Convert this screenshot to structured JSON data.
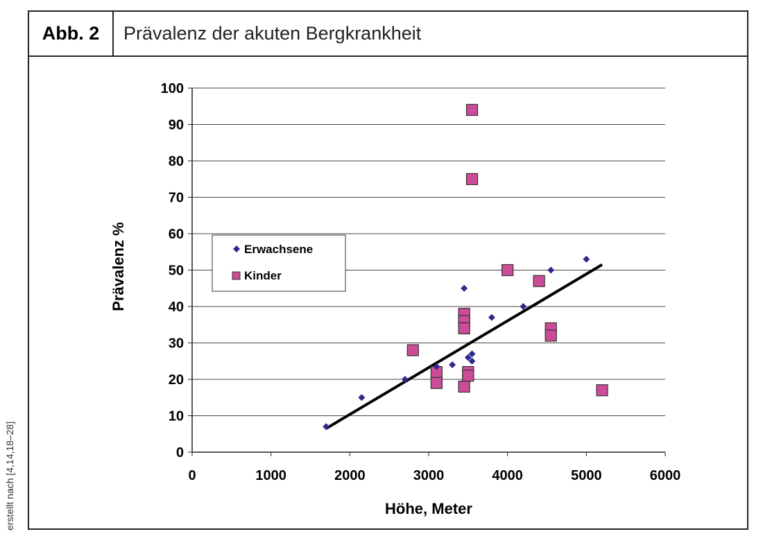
{
  "figure": {
    "label": "Abb. 2",
    "title": "Prävalenz der akuten Bergkrankheit",
    "source": "erstellt nach [4,14,18–28]"
  },
  "chart_data": {
    "type": "scatter",
    "title": "Prävalenz der akuten Bergkrankheit",
    "xlabel": "Höhe, Meter",
    "ylabel": "Prävalenz  %",
    "xlim": [
      0,
      6000
    ],
    "ylim": [
      0,
      100
    ],
    "xticks": [
      0,
      1000,
      2000,
      3000,
      4000,
      5000,
      6000
    ],
    "yticks": [
      0,
      10,
      20,
      30,
      40,
      50,
      60,
      70,
      80,
      90,
      100
    ],
    "grid": "horizontal",
    "legend_position": "center-left",
    "series": [
      {
        "name": "Erwachsene",
        "marker": "diamond",
        "color": "#2e2a8c",
        "points": [
          [
            1700,
            7
          ],
          [
            2150,
            15
          ],
          [
            2700,
            20
          ],
          [
            3100,
            23.5
          ],
          [
            3300,
            24
          ],
          [
            3450,
            45
          ],
          [
            3500,
            26
          ],
          [
            3550,
            27
          ],
          [
            3550,
            25
          ],
          [
            3800,
            37
          ],
          [
            4200,
            40
          ],
          [
            4550,
            50
          ],
          [
            5000,
            53
          ]
        ]
      },
      {
        "name": "Kinder",
        "marker": "square",
        "color": "#cc4c98",
        "points": [
          [
            3550,
            94
          ],
          [
            3550,
            75
          ],
          [
            2800,
            28
          ],
          [
            3100,
            22
          ],
          [
            3100,
            19
          ],
          [
            3450,
            38
          ],
          [
            3450,
            36
          ],
          [
            3450,
            34
          ],
          [
            3450,
            18
          ],
          [
            3500,
            22
          ],
          [
            3500,
            21
          ],
          [
            4000,
            50
          ],
          [
            4400,
            47
          ],
          [
            4550,
            34
          ],
          [
            4550,
            32
          ],
          [
            5200,
            17
          ]
        ]
      }
    ],
    "trendline": {
      "from": [
        1700,
        6.5
      ],
      "to": [
        5200,
        51.5
      ]
    }
  }
}
